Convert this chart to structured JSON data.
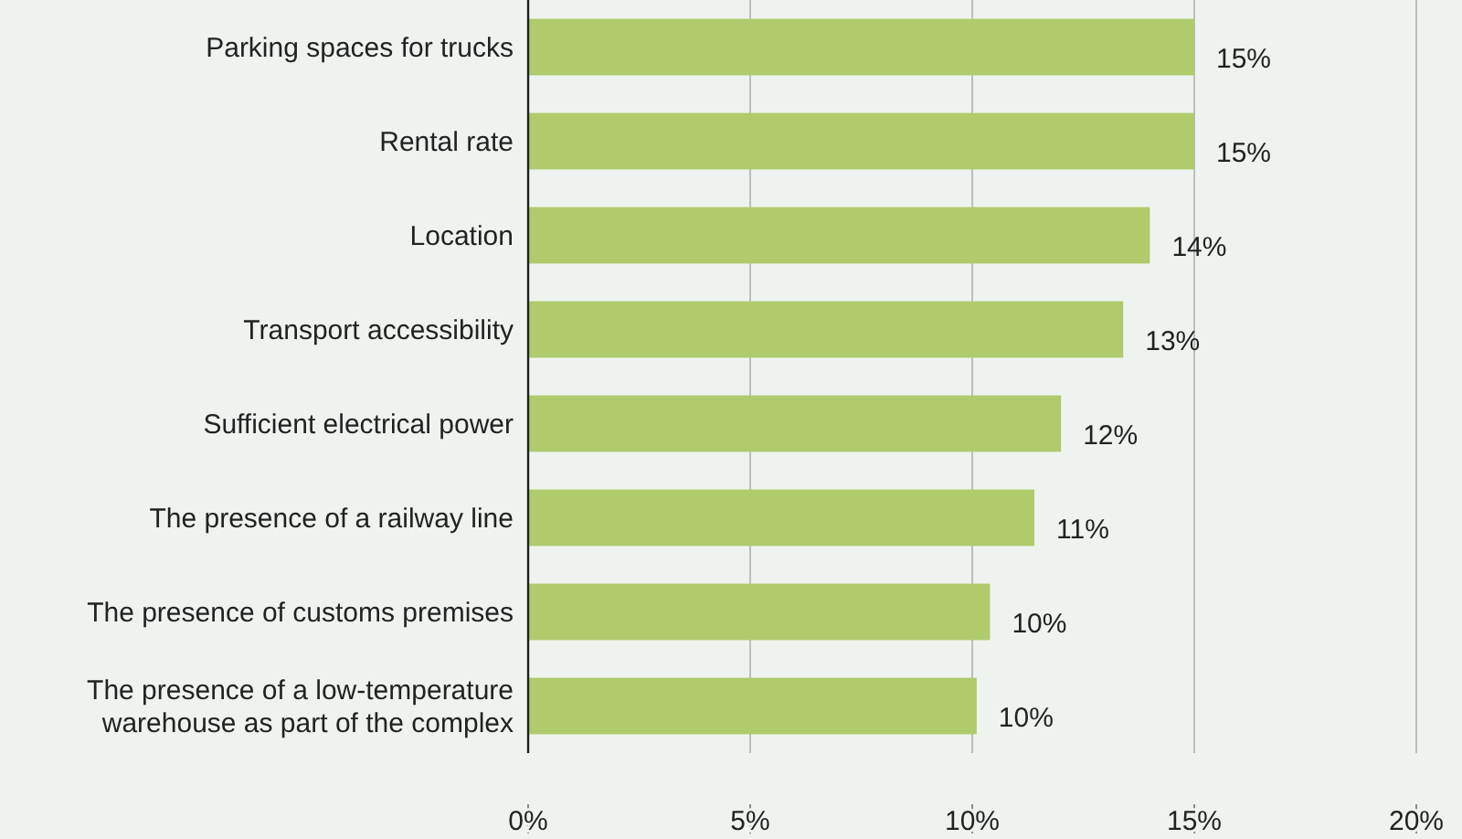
{
  "chart_data": {
    "type": "bar",
    "orientation": "horizontal",
    "categories": [
      "Parking spaces for trucks",
      "Rental rate",
      "Location",
      "Transport accessibility",
      "Sufficient electrical power",
      "The presence of a railway line",
      "The presence of customs premises",
      "The presence of a low-temperature warehouse as part of the complex"
    ],
    "values": [
      15.0,
      15.0,
      14.0,
      13.4,
      12.0,
      11.4,
      10.4,
      10.1
    ],
    "value_labels": [
      "15%",
      "15%",
      "14%",
      "13%",
      "12%",
      "11%",
      "10%",
      "10%"
    ],
    "color": "#afcb6c",
    "xlim": [
      0,
      20
    ],
    "xticks": [
      {
        "value": 0,
        "label": "0%"
      },
      {
        "value": 5,
        "label": "5%"
      },
      {
        "value": 10,
        "label": "10%"
      },
      {
        "value": 15,
        "label": "15%"
      },
      {
        "value": 20,
        "label": "20%"
      }
    ],
    "grid": "x"
  }
}
